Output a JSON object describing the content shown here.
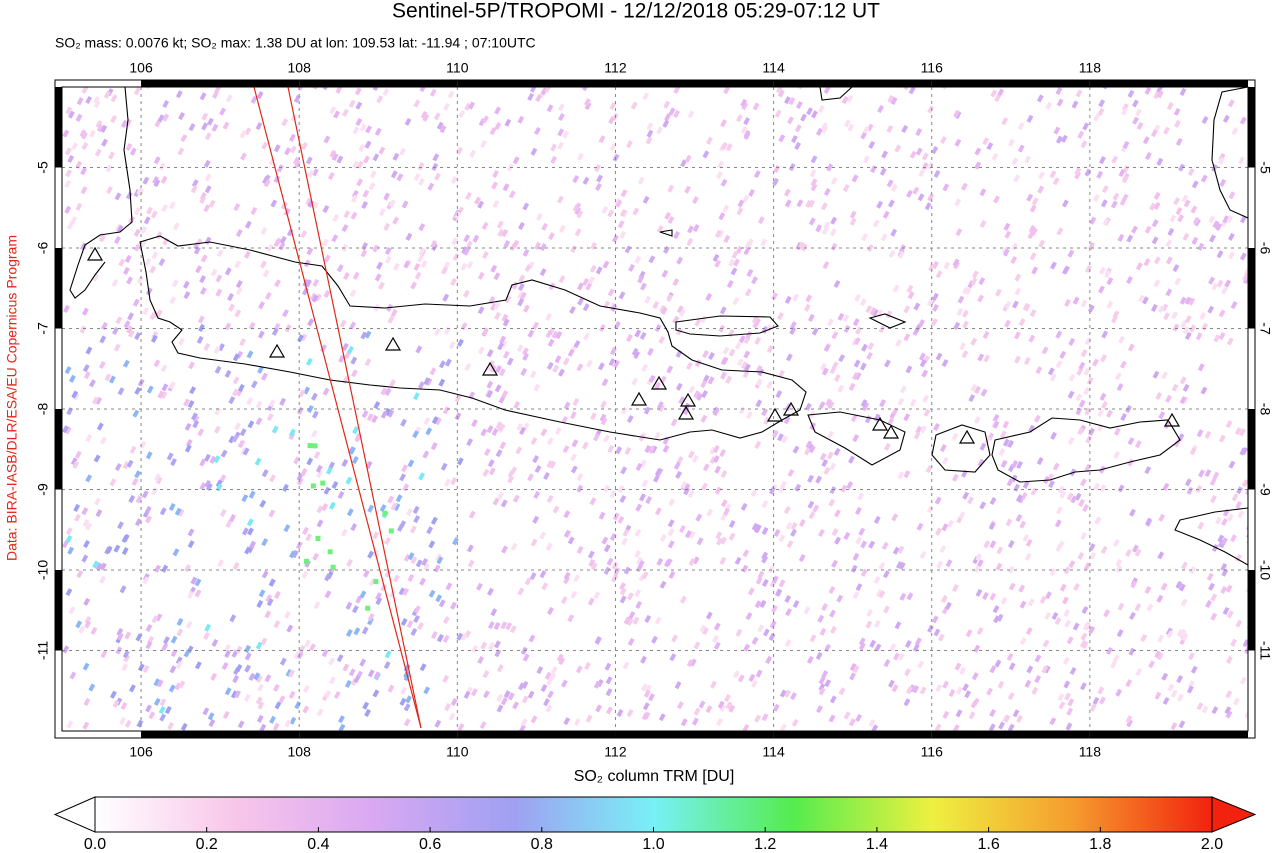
{
  "chart_data": {
    "type": "map",
    "title": "Sentinel-5P/TROPOMI - 12/12/2018 05:29-07:12 UT",
    "subtitle": "SO₂ mass: 0.0076 kt; SO₂ max: 1.38 DU at lon: 109.53 lat: -11.94 ; 07:10UTC",
    "credit": "Data: BIRA-IASB/DLR/ESA/EU Copernicus Program",
    "xlim": [
      105,
      120
    ],
    "ylim": [
      -12,
      -4
    ],
    "xticks": [
      106,
      108,
      110,
      112,
      114,
      116,
      118
    ],
    "yticks": [
      -5,
      -6,
      -7,
      -8,
      -9,
      -10,
      -11
    ],
    "grid": true,
    "colorbar": {
      "label": "SO₂ column TRM [DU]",
      "lim": [
        0,
        2
      ],
      "ticks": [
        {
          "value": 0,
          "label": "0.0"
        },
        {
          "value": 0.2,
          "label": "0.2"
        },
        {
          "value": 0.4,
          "label": "0.4"
        },
        {
          "value": 0.6,
          "label": "0.6"
        },
        {
          "value": 0.8,
          "label": "0.8"
        },
        {
          "value": 1,
          "label": "1.0"
        },
        {
          "value": 1.2,
          "label": "1.2"
        },
        {
          "value": 1.4,
          "label": "1.4"
        },
        {
          "value": 1.6,
          "label": "1.6"
        },
        {
          "value": 1.8,
          "label": "1.8"
        },
        {
          "value": 2,
          "label": "2.0"
        }
      ],
      "colormap": [
        "#ffffff",
        "#f8c6ea",
        "#d9a8f2",
        "#9fa0f2",
        "#78f0f6",
        "#55ec4e",
        "#eef040",
        "#f59c2e",
        "#f2220e"
      ]
    }
  }
}
